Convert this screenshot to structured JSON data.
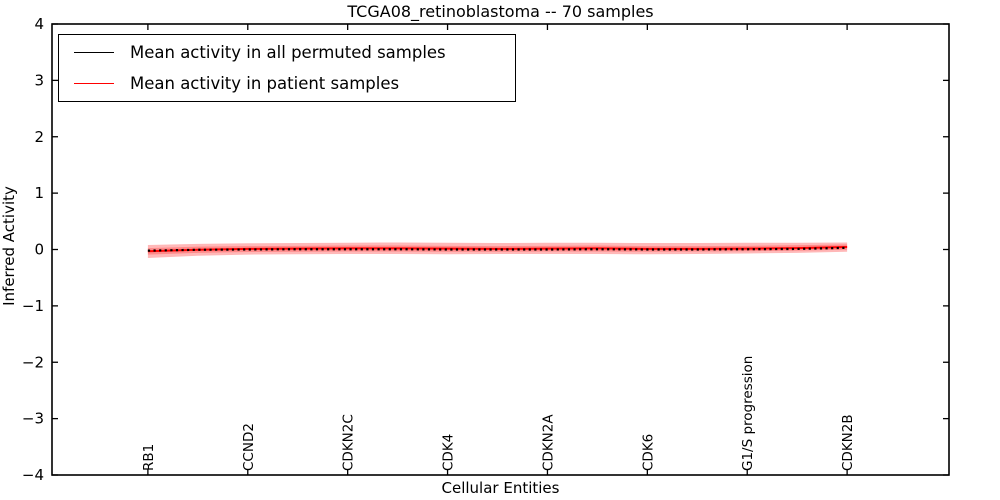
{
  "chart_data": {
    "type": "line",
    "title": "TCGA08_retinoblastoma -- 70 samples",
    "xlabel": "Cellular Entities",
    "ylabel": "Inferred Activity",
    "categories": [
      "RB1",
      "CCND2",
      "CDKN2C",
      "CDK4",
      "CDKN2A",
      "CDK6",
      "G1/S progression",
      "CDKN2B"
    ],
    "xlim": [
      -0.96,
      8.02
    ],
    "ylim": [
      -4,
      4
    ],
    "ytick_values": [
      4,
      3,
      2,
      1,
      0,
      -1,
      -2,
      -3,
      -4
    ],
    "ytick_labels": [
      "4",
      "3",
      "2",
      "1",
      "0",
      "−1",
      "−2",
      "−3",
      "−4"
    ],
    "grid": false,
    "x": [
      0,
      0.5,
      1,
      1.5,
      2,
      2.5,
      3,
      3.5,
      4,
      4.5,
      5,
      5.5,
      6,
      6.5,
      7
    ],
    "series": [
      {
        "name": "Mean activity in all permuted samples",
        "color": "#000000",
        "style": "dotted",
        "values": [
          -0.02,
          -0.005,
          0.0,
          0.005,
          0.005,
          0.005,
          0.0,
          0.0,
          0.0,
          0.005,
          0.0,
          0.0,
          0.005,
          0.01,
          0.03
        ]
      },
      {
        "name": "Mean activity in patient samples",
        "color": "#ff0000",
        "style": "solid",
        "values": [
          -0.03,
          -0.005,
          0.01,
          0.015,
          0.02,
          0.02,
          0.015,
          0.01,
          0.015,
          0.02,
          0.01,
          0.01,
          0.015,
          0.025,
          0.045
        ]
      }
    ],
    "band": {
      "color": "#ff0000",
      "outer_opacity": 0.28,
      "inner_opacity": 0.25,
      "outer_upper": [
        0.08,
        0.1,
        0.11,
        0.115,
        0.12,
        0.125,
        0.12,
        0.115,
        0.12,
        0.12,
        0.115,
        0.115,
        0.12,
        0.12,
        0.125
      ],
      "outer_lower": [
        -0.15,
        -0.11,
        -0.09,
        -0.085,
        -0.08,
        -0.08,
        -0.085,
        -0.08,
        -0.08,
        -0.08,
        -0.085,
        -0.08,
        -0.07,
        -0.06,
        -0.04
      ],
      "inner_upper": [
        0.025,
        0.05,
        0.06,
        0.065,
        0.07,
        0.07,
        0.065,
        0.06,
        0.065,
        0.07,
        0.06,
        0.06,
        0.065,
        0.075,
        0.09
      ],
      "inner_lower": [
        -0.09,
        -0.06,
        -0.045,
        -0.04,
        -0.035,
        -0.035,
        -0.04,
        -0.04,
        -0.035,
        -0.035,
        -0.04,
        -0.035,
        -0.03,
        -0.02,
        -0.005
      ]
    },
    "legend": {
      "position": "upper left",
      "entries": [
        {
          "label": "Mean activity in all permuted samples",
          "color": "#000000"
        },
        {
          "label": "Mean activity in patient samples",
          "color": "#ff0000"
        }
      ]
    }
  }
}
